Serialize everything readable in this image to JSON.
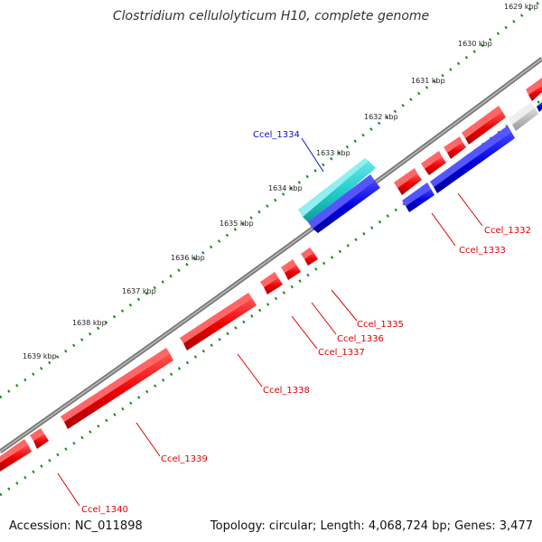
{
  "title": "Clostridium cellulolyticum H10, complete genome",
  "accession": "Accession: NC_011898",
  "summary": "Topology: circular; Length: 4,068,724 bp; Genes: 3,477",
  "colors": {
    "forward": "#ff0000",
    "reverse": "#0000dd",
    "rna": "#22cccc",
    "other": "#bbbbbb",
    "backbone": "#777777",
    "ticks": "#1a8a1a",
    "label_red": "#dd0000",
    "label_blue": "#1010bb"
  },
  "kbp_labels": [
    "1629 kbp",
    "1630 kbp",
    "1631 kbp",
    "1632 kbp",
    "1633 kbp",
    "1634 kbp",
    "1635 kbp",
    "1636 kbp",
    "1637 kbp",
    "1638 kbp",
    "1639 kbp"
  ],
  "gene_labels": {
    "ccel_1332": "Ccel_1332",
    "ccel_1333": "Ccel_1333",
    "ccel_1334": "Ccel_1334",
    "ccel_1335": "Ccel_1335",
    "ccel_1336": "Ccel_1336",
    "ccel_1337": "Ccel_1337",
    "ccel_1338": "Ccel_1338",
    "ccel_1339": "Ccel_1339",
    "ccel_1340": "Ccel_1340"
  }
}
